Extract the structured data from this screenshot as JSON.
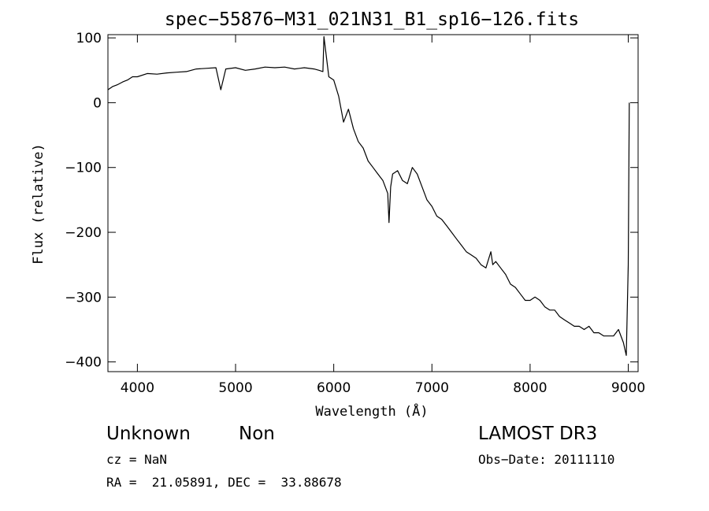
{
  "chart_data": {
    "type": "line",
    "title": "spec−55876−M31_021N31_B1_sp16−126.fits",
    "xlabel": "Wavelength (Å)",
    "ylabel": "Flux (relative)",
    "xlim": [
      3700,
      9100
    ],
    "ylim": [
      -415,
      105
    ],
    "xticks": [
      4000,
      5000,
      6000,
      7000,
      8000,
      9000
    ],
    "xtick_labels": [
      "4000",
      "5000",
      "6000",
      "7000",
      "8000",
      "9000"
    ],
    "yticks": [
      100,
      0,
      -100,
      -200,
      -300,
      -400
    ],
    "ytick_labels": [
      "100",
      "0",
      "−100",
      "−200",
      "−300",
      "−400"
    ],
    "grid": false,
    "series": [
      {
        "x": [
          3700,
          3750,
          3800,
          3850,
          3900,
          3950,
          4000,
          4100,
          4200,
          4300,
          4400,
          4500,
          4600,
          4700,
          4800,
          4850,
          4900,
          5000,
          5100,
          5200,
          5300,
          5400,
          5500,
          5600,
          5700,
          5800,
          5850,
          5890,
          5900,
          5950,
          6000,
          6050,
          6100,
          6150,
          6200,
          6250,
          6300,
          6350,
          6400,
          6450,
          6500,
          6550,
          6563,
          6580,
          6600,
          6650,
          6700,
          6750,
          6800,
          6850,
          6900,
          6950,
          7000,
          7050,
          7100,
          7150,
          7200,
          7250,
          7300,
          7350,
          7400,
          7450,
          7500,
          7550,
          7600,
          7620,
          7650,
          7700,
          7750,
          7800,
          7850,
          7900,
          7950,
          8000,
          8050,
          8100,
          8150,
          8200,
          8250,
          8300,
          8350,
          8400,
          8450,
          8500,
          8550,
          8600,
          8650,
          8700,
          8750,
          8800,
          8850,
          8900,
          8950,
          8980,
          9000,
          9010
        ],
        "y": [
          20,
          25,
          28,
          32,
          35,
          40,
          40,
          45,
          44,
          46,
          47,
          48,
          52,
          53,
          54,
          20,
          52,
          54,
          50,
          52,
          55,
          54,
          55,
          52,
          54,
          52,
          50,
          48,
          102,
          40,
          35,
          10,
          -30,
          -10,
          -40,
          -60,
          -70,
          -90,
          -100,
          -110,
          -120,
          -140,
          -185,
          -130,
          -110,
          -105,
          -120,
          -125,
          -100,
          -110,
          -130,
          -150,
          -160,
          -175,
          -180,
          -190,
          -200,
          -210,
          -220,
          -230,
          -235,
          -240,
          -250,
          -255,
          -230,
          -250,
          -245,
          -255,
          -265,
          -280,
          -285,
          -295,
          -305,
          -305,
          -300,
          -305,
          -315,
          -320,
          -320,
          -330,
          -335,
          -340,
          -345,
          -345,
          -350,
          -345,
          -355,
          -355,
          -360,
          -360,
          -360,
          -350,
          -370,
          -390,
          -250,
          0
        ]
      }
    ]
  },
  "info": {
    "object_class": "Unknown",
    "object_subclass": "Non",
    "survey": "LAMOST DR3",
    "cz": "cz = NaN",
    "obs_date": "Obs−Date: 20111110",
    "coords": "RA =  21.05891, DEC =  33.88678"
  }
}
